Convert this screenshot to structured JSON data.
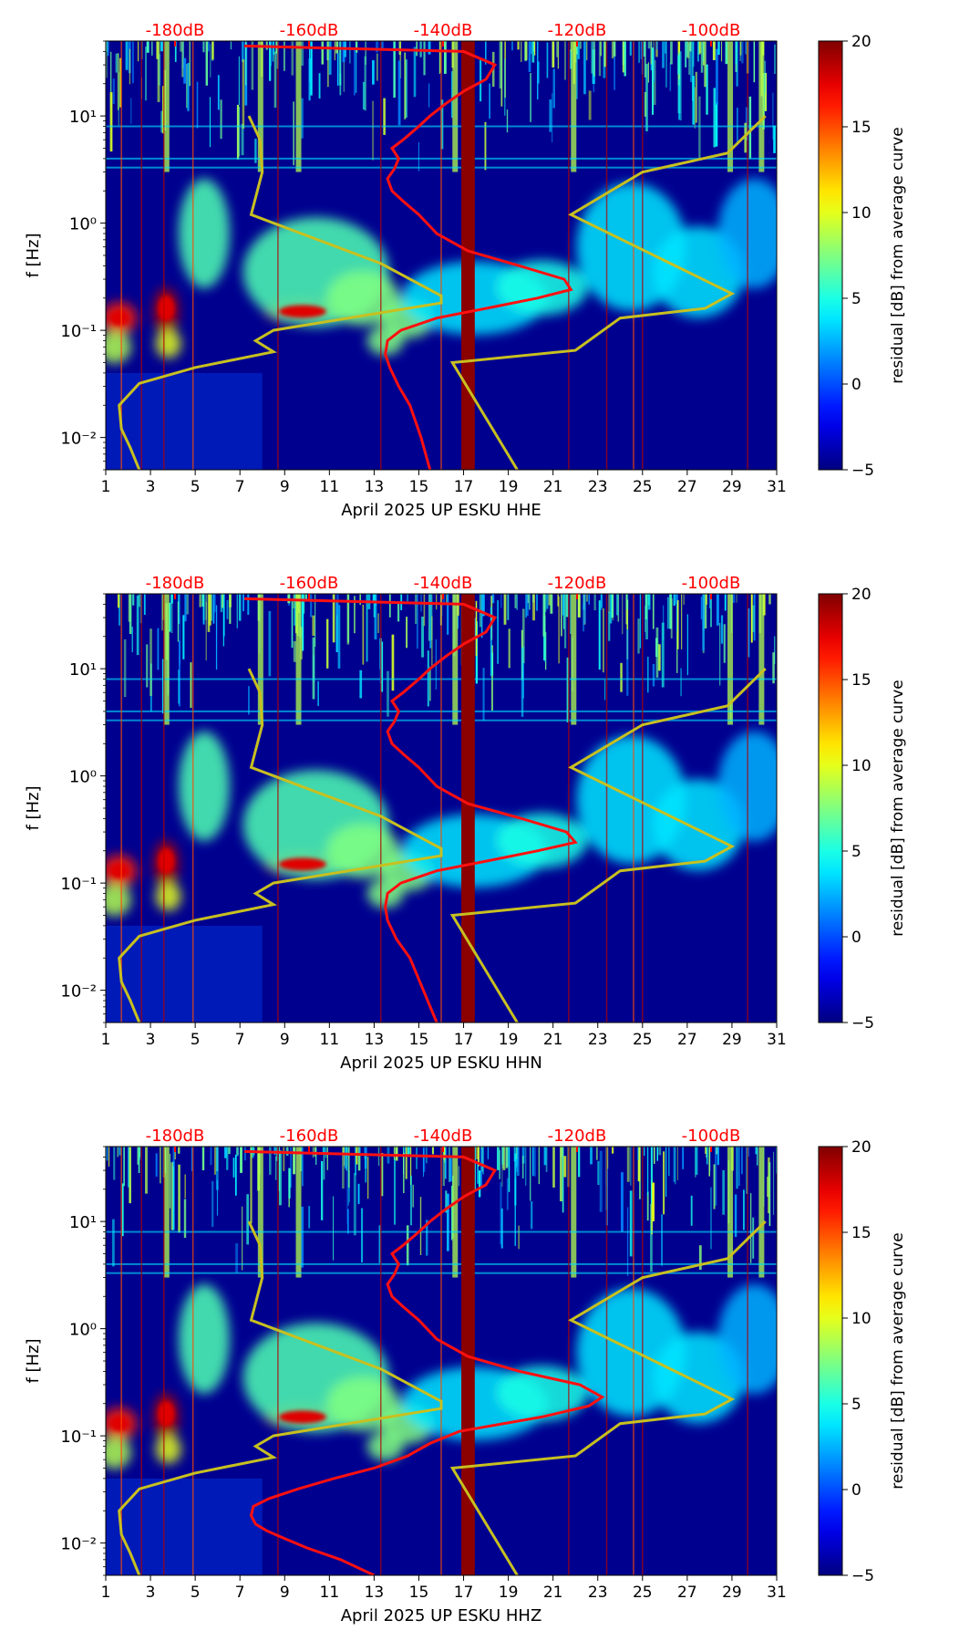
{
  "figure": {
    "db_scale_labels": [
      "-180dB",
      "-160dB",
      "-140dB",
      "-120dB",
      "-100dB"
    ],
    "y_tick_labels": [
      "10⁻²",
      "10⁻¹",
      "10⁰",
      "10¹"
    ],
    "colors": {
      "background": "#00008f",
      "red_curve": "#ff1010",
      "yellow_curve": "#c8c020",
      "db_label": "#ff0000",
      "gap_band": "#8b0000"
    },
    "colormap": "jet"
  },
  "chart_data": [
    {
      "type": "heatmap",
      "channel": "HHE",
      "xlabel": "April 2025 UP ESKU  HHE",
      "ylabel": "f [Hz]",
      "xlim": [
        1,
        31
      ],
      "ylim": [
        0.005,
        50
      ],
      "yscale": "log",
      "x_ticks": [
        1,
        3,
        5,
        7,
        9,
        11,
        13,
        15,
        17,
        19,
        21,
        23,
        25,
        27,
        29,
        31
      ],
      "colorbar": {
        "label": "residual [dB] from average curve",
        "range": [
          -5,
          20
        ],
        "ticks": [
          -5,
          0,
          5,
          10,
          15,
          20
        ]
      },
      "red_curve": {
        "x": [
          15.5,
          15.1,
          14.6,
          14.1,
          13.7,
          13.5,
          13.6,
          14.2,
          15.8,
          18.0,
          20.3,
          21.8,
          21.5,
          19.5,
          17.2,
          15.8,
          15.0,
          14.3,
          13.8,
          13.6,
          13.9,
          14.1,
          13.8,
          14.3,
          15.0,
          15.5,
          16.2,
          17.0,
          18.0,
          18.4,
          17.0,
          7.2
        ],
        "y": [
          0.005,
          0.01,
          0.02,
          0.03,
          0.045,
          0.06,
          0.08,
          0.1,
          0.13,
          0.16,
          0.2,
          0.24,
          0.3,
          0.4,
          0.55,
          0.8,
          1.2,
          1.6,
          2.0,
          2.6,
          3.2,
          4.0,
          5.0,
          6.0,
          8.0,
          10,
          13,
          17,
          22,
          30,
          40,
          45
        ]
      },
      "yellow_curve_left": {
        "x": [
          2.5,
          2.1,
          1.7,
          1.6,
          2.5,
          5.0,
          8.5,
          7.7,
          8.5,
          16.0,
          16.0,
          13.3,
          7.5,
          8.0,
          7.9,
          7.4
        ],
        "y": [
          0.005,
          0.008,
          0.012,
          0.02,
          0.032,
          0.045,
          0.063,
          0.08,
          0.1,
          0.18,
          0.21,
          0.42,
          1.2,
          3.0,
          6.0,
          10
        ]
      },
      "yellow_curve_right": {
        "x": [
          19.4,
          16.5,
          22.0,
          24.0,
          27.8,
          29.0,
          21.8,
          25.0,
          28.8,
          30.5
        ],
        "y": [
          0.005,
          0.05,
          0.065,
          0.13,
          0.16,
          0.22,
          1.2,
          3.0,
          4.5,
          10
        ]
      }
    },
    {
      "type": "heatmap",
      "channel": "HHN",
      "xlabel": "April 2025 UP ESKU  HHN",
      "ylabel": "f [Hz]",
      "xlim": [
        1,
        31
      ],
      "ylim": [
        0.005,
        50
      ],
      "yscale": "log",
      "x_ticks": [
        1,
        3,
        5,
        7,
        9,
        11,
        13,
        15,
        17,
        19,
        21,
        23,
        25,
        27,
        29,
        31
      ],
      "colorbar": {
        "label": "residual [dB] from average curve",
        "range": [
          -5,
          20
        ],
        "ticks": [
          -5,
          0,
          5,
          10,
          15,
          20
        ]
      },
      "red_curve": {
        "x": [
          15.8,
          15.2,
          14.6,
          14.0,
          13.6,
          13.5,
          13.6,
          14.2,
          15.8,
          18.0,
          20.3,
          22.0,
          21.6,
          19.6,
          17.2,
          15.8,
          15.0,
          14.3,
          13.8,
          13.6,
          13.9,
          14.1,
          13.8,
          14.3,
          15.0,
          15.5,
          16.2,
          17.0,
          18.0,
          18.4,
          17.0,
          7.2
        ],
        "y": [
          0.005,
          0.01,
          0.02,
          0.03,
          0.045,
          0.06,
          0.08,
          0.1,
          0.13,
          0.16,
          0.2,
          0.24,
          0.3,
          0.4,
          0.55,
          0.8,
          1.2,
          1.6,
          2.0,
          2.6,
          3.2,
          4.0,
          5.0,
          6.0,
          8.0,
          10,
          13,
          17,
          22,
          30,
          40,
          45
        ]
      },
      "yellow_curve_left": {
        "x": [
          2.5,
          2.1,
          1.7,
          1.6,
          2.5,
          5.0,
          8.5,
          7.7,
          8.5,
          16.0,
          16.0,
          13.3,
          7.5,
          8.0,
          7.9,
          7.4
        ],
        "y": [
          0.005,
          0.008,
          0.012,
          0.02,
          0.032,
          0.045,
          0.063,
          0.08,
          0.1,
          0.18,
          0.21,
          0.42,
          1.2,
          3.0,
          6.0,
          10
        ]
      },
      "yellow_curve_right": {
        "x": [
          19.4,
          16.5,
          22.0,
          24.0,
          27.8,
          29.0,
          21.8,
          25.0,
          28.8,
          30.5
        ],
        "y": [
          0.005,
          0.05,
          0.065,
          0.13,
          0.16,
          0.22,
          1.2,
          3.0,
          4.5,
          10
        ]
      }
    },
    {
      "type": "heatmap",
      "channel": "HHZ",
      "xlabel": "April 2025 UP ESKU  HHZ",
      "ylabel": "f [Hz]",
      "xlim": [
        1,
        31
      ],
      "ylim": [
        0.005,
        50
      ],
      "yscale": "log",
      "x_ticks": [
        1,
        3,
        5,
        7,
        9,
        11,
        13,
        15,
        17,
        19,
        21,
        23,
        25,
        27,
        29,
        31
      ],
      "colorbar": {
        "label": "residual [dB] from average curve",
        "range": [
          -5,
          20
        ],
        "ticks": [
          -5,
          0,
          5,
          10,
          15,
          20
        ]
      },
      "red_curve": {
        "x": [
          13.0,
          11.5,
          10.0,
          9.0,
          8.2,
          7.7,
          7.5,
          7.6,
          8.3,
          9.6,
          11.2,
          13.0,
          14.5,
          15.5,
          16.8,
          20.5,
          22.6,
          23.2,
          22.2,
          19.5,
          17.2,
          15.8,
          15.0,
          14.3,
          13.8,
          13.6,
          13.9,
          14.1,
          13.8,
          14.3,
          15.0,
          15.5,
          16.2,
          17.0,
          18.0,
          18.4,
          17.0,
          7.2
        ],
        "y": [
          0.005,
          0.007,
          0.009,
          0.011,
          0.013,
          0.015,
          0.018,
          0.022,
          0.026,
          0.032,
          0.04,
          0.05,
          0.065,
          0.085,
          0.11,
          0.15,
          0.19,
          0.23,
          0.3,
          0.4,
          0.55,
          0.8,
          1.2,
          1.6,
          2.0,
          2.6,
          3.2,
          4.0,
          5.0,
          6.0,
          8.0,
          10,
          13,
          17,
          22,
          30,
          40,
          45
        ]
      },
      "yellow_curve_left": {
        "x": [
          2.5,
          2.1,
          1.7,
          1.6,
          2.5,
          5.0,
          8.5,
          7.7,
          8.5,
          16.0,
          16.0,
          13.3,
          7.5,
          8.0,
          7.9,
          7.4
        ],
        "y": [
          0.005,
          0.008,
          0.012,
          0.02,
          0.032,
          0.045,
          0.063,
          0.08,
          0.1,
          0.18,
          0.21,
          0.42,
          1.2,
          3.0,
          6.0,
          10
        ]
      },
      "yellow_curve_right": {
        "x": [
          19.4,
          16.5,
          22.0,
          24.0,
          27.8,
          29.0,
          21.8,
          25.0,
          28.8,
          30.5
        ],
        "y": [
          0.005,
          0.05,
          0.065,
          0.13,
          0.16,
          0.22,
          1.2,
          3.0,
          4.5,
          10
        ]
      }
    }
  ]
}
